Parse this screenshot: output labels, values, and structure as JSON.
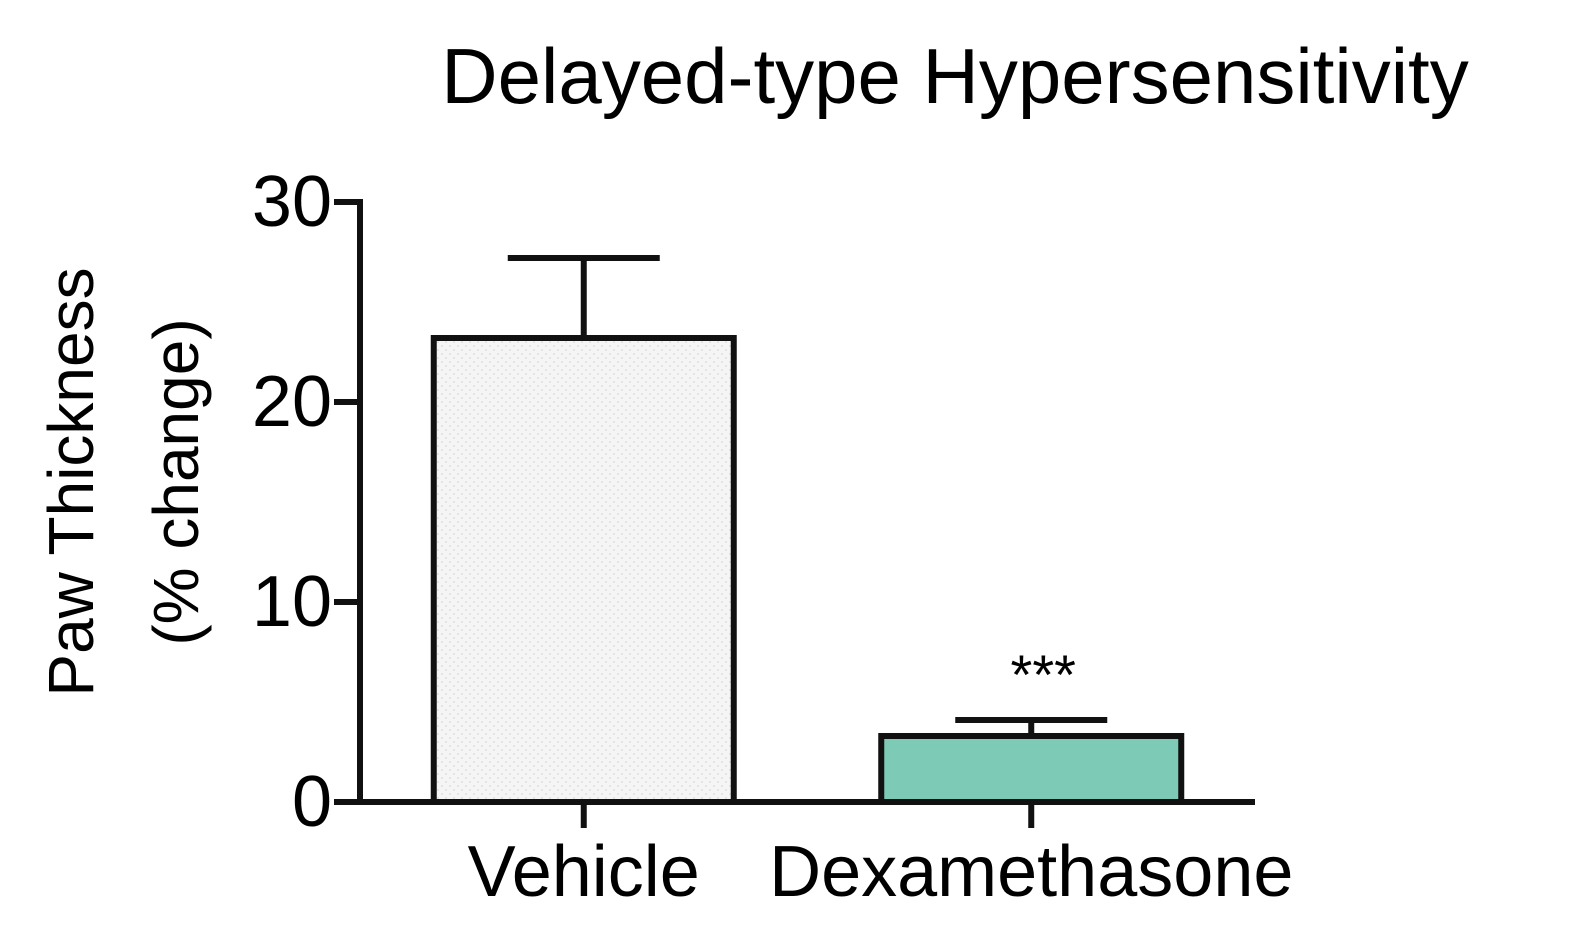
{
  "chart_data": {
    "type": "bar",
    "title": "Delayed-type Hypersensitivity",
    "ylabel_lines": [
      "Paw Thickness",
      "(% change)"
    ],
    "xlabel": "",
    "categories": [
      "Vehicle",
      "Dexamethasone"
    ],
    "values": [
      23.2,
      3.3
    ],
    "errors": [
      4.0,
      0.8
    ],
    "bar_colors": [
      "#f5f5f5",
      "#7dcbb7"
    ],
    "bar_pattern": [
      "dotted",
      "solid"
    ],
    "annotations": [
      {
        "category": "Dexamethasone",
        "text": "***"
      }
    ],
    "ylim": [
      0,
      30
    ],
    "yticks": [
      0,
      10,
      20,
      30
    ],
    "grid": false,
    "legend": "none"
  }
}
